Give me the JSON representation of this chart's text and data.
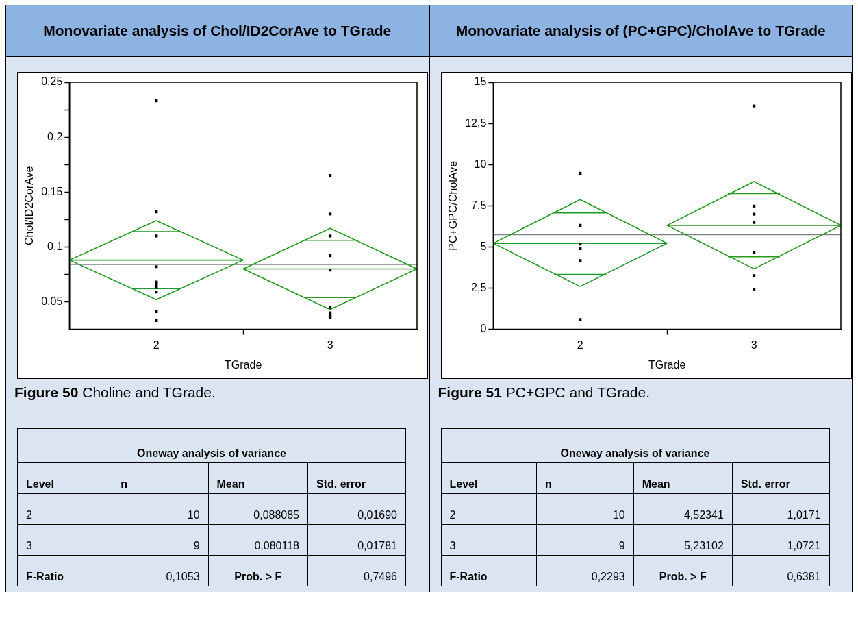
{
  "chart_data": [
    {
      "type": "scatter",
      "title": "Monovariate analysis of Chol/ID2CorAve to TGrade",
      "xlabel": "TGrade",
      "ylabel": "Chol/ID2CorAve",
      "marker": "square",
      "xlim": [
        1.5,
        3.5
      ],
      "xticks": [
        {
          "value": 2,
          "label": "2"
        },
        {
          "value": 2.5,
          "label": null
        },
        {
          "value": 3,
          "label": "3"
        }
      ],
      "ylim": [
        0.025,
        0.25
      ],
      "yticks": [
        {
          "value": 0.05,
          "label": "0,05"
        },
        {
          "value": 0.075,
          "label": null
        },
        {
          "value": 0.1,
          "label": "0,1"
        },
        {
          "value": 0.125,
          "label": null
        },
        {
          "value": 0.15,
          "label": "0,15"
        },
        {
          "value": 0.175,
          "label": null
        },
        {
          "value": 0.2,
          "label": "0,2"
        },
        {
          "value": 0.225,
          "label": null
        },
        {
          "value": 0.25,
          "label": "0,25"
        }
      ],
      "ref_lines": [
        {
          "axis": "y",
          "value": 0.084,
          "color": "#808080"
        }
      ],
      "series": [
        {
          "color": "#000000",
          "x": [
            2,
            2,
            2,
            2,
            2,
            2,
            2,
            2,
            2,
            2
          ],
          "values": [
            0.233,
            0.132,
            0.11,
            0.082,
            0.068,
            0.066,
            0.063,
            0.059,
            0.041,
            0.033
          ]
        },
        {
          "color": "#000000",
          "x": [
            3,
            3,
            3,
            3,
            3,
            3,
            3,
            3,
            3
          ],
          "values": [
            0.165,
            0.13,
            0.11,
            0.092,
            0.079,
            0.045,
            0.04,
            0.038,
            0.036
          ]
        },
        {
          "type": "line",
          "marker": "none",
          "color": "#1a9a1a",
          "x": [
            1.5,
            2,
            2.5
          ],
          "values": [
            0.088,
            0.124,
            0.088
          ]
        },
        {
          "type": "line",
          "marker": "none",
          "color": "#1a9a20",
          "x": [
            1.5,
            2,
            2.5
          ],
          "values": [
            0.088,
            0.052,
            0.088
          ]
        },
        {
          "type": "line",
          "marker": "none",
          "color": "#1a9a26",
          "x": [
            1.5,
            2.5
          ],
          "values": [
            0.088,
            0.088
          ]
        },
        {
          "type": "line",
          "marker": "none",
          "color": "#1a9a2c",
          "x": [
            1.86,
            2.14
          ],
          "values": [
            0.114,
            0.114
          ]
        },
        {
          "type": "line",
          "marker": "none",
          "color": "#1a9a32",
          "x": [
            1.86,
            2.14
          ],
          "values": [
            0.062,
            0.062
          ]
        },
        {
          "type": "line",
          "marker": "none",
          "color": "#1c9a1a",
          "x": [
            2.5,
            3,
            3.5
          ],
          "values": [
            0.08,
            0.117,
            0.08
          ]
        },
        {
          "type": "line",
          "marker": "none",
          "color": "#209a1a",
          "x": [
            2.5,
            3,
            3.5
          ],
          "values": [
            0.08,
            0.043,
            0.08
          ]
        },
        {
          "type": "line",
          "marker": "none",
          "color": "#249a1a",
          "x": [
            2.5,
            3.5
          ],
          "values": [
            0.08,
            0.08
          ]
        },
        {
          "type": "line",
          "marker": "none",
          "color": "#289a1a",
          "x": [
            2.85,
            3.14
          ],
          "values": [
            0.106,
            0.106
          ]
        },
        {
          "type": "line",
          "marker": "none",
          "color": "#2c9a1a",
          "x": [
            2.85,
            3.14
          ],
          "values": [
            0.054,
            0.054
          ]
        }
      ],
      "annotations": [
        "Figure 50 Choline and TGrade.",
        "Oneway analysis of variance",
        "Level",
        "n",
        "Mean",
        "Std. error",
        "2",
        "10",
        "0,088085",
        "0,01690",
        "3",
        "9",
        "0,080118",
        "0,01781",
        "F-Ratio",
        "0,1053",
        "Prob. > F",
        "0,7496"
      ]
    },
    {
      "type": "scatter",
      "title": "Monovariate analysis of (PC+GPC)/CholAve to TGrade",
      "xlabel": "TGrade",
      "ylabel": "PC+GPC/CholAve",
      "marker": "square",
      "xlim": [
        1.5,
        3.5
      ],
      "xticks": [
        {
          "value": 2,
          "label": "2"
        },
        {
          "value": 2.5,
          "label": null
        },
        {
          "value": 3,
          "label": "3"
        }
      ],
      "ylim": [
        0,
        15
      ],
      "yticks": [
        0,
        {
          "value": 2.5,
          "label": "2,5"
        },
        5,
        {
          "value": 7.5,
          "label": "7,5"
        },
        10,
        {
          "value": 12.5,
          "label": "12,5"
        },
        15
      ],
      "ref_lines": [
        {
          "axis": "y",
          "value": 5.74,
          "color": "#808080"
        }
      ],
      "series": [
        {
          "color": "#000000",
          "x": [
            2,
            2,
            2,
            2,
            2,
            2
          ],
          "values": [
            9.47,
            6.31,
            5.18,
            4.9,
            4.17,
            0.59
          ]
        },
        {
          "color": "#000000",
          "x": [
            3,
            3,
            3,
            3,
            3,
            3,
            3
          ],
          "values": [
            13.56,
            7.48,
            6.99,
            6.49,
            4.66,
            3.25,
            2.42
          ]
        },
        {
          "type": "line",
          "marker": "none",
          "color": "#1a9a1a",
          "x": [
            1.5,
            2,
            2.5
          ],
          "values": [
            5.22,
            7.88,
            5.22
          ]
        },
        {
          "type": "line",
          "marker": "none",
          "color": "#1a9a20",
          "x": [
            1.5,
            2,
            2.5
          ],
          "values": [
            5.22,
            2.6,
            5.22
          ]
        },
        {
          "type": "line",
          "marker": "none",
          "color": "#1a9a26",
          "x": [
            1.5,
            2.5
          ],
          "values": [
            5.22,
            5.22
          ]
        },
        {
          "type": "line",
          "marker": "none",
          "color": "#1a9a2c",
          "x": [
            1.85,
            2.15
          ],
          "values": [
            7.07,
            7.07
          ]
        },
        {
          "type": "line",
          "marker": "none",
          "color": "#1a9a32",
          "x": [
            1.85,
            2.15
          ],
          "values": [
            3.33,
            3.33
          ]
        },
        {
          "type": "line",
          "marker": "none",
          "color": "#1c9a1a",
          "x": [
            2.5,
            3,
            3.5
          ],
          "values": [
            6.31,
            8.97,
            6.31
          ]
        },
        {
          "type": "line",
          "marker": "none",
          "color": "#209a1a",
          "x": [
            2.5,
            3,
            3.5
          ],
          "values": [
            6.31,
            3.67,
            6.31
          ]
        },
        {
          "type": "line",
          "marker": "none",
          "color": "#249a1a",
          "x": [
            2.5,
            3.5
          ],
          "values": [
            6.31,
            6.31
          ]
        },
        {
          "type": "line",
          "marker": "none",
          "color": "#289a1a",
          "x": [
            2.85,
            3.15
          ],
          "values": [
            8.24,
            8.24
          ]
        },
        {
          "type": "line",
          "marker": "none",
          "color": "#2c9a1a",
          "x": [
            2.85,
            3.15
          ],
          "values": [
            4.41,
            4.41
          ]
        }
      ],
      "annotations": [
        "Figure 51 PC+GPC and TGrade.",
        "Oneway analysis of variance",
        "Level",
        "n",
        "Mean",
        "Std. error",
        "2",
        "10",
        "4,52341",
        "1,0171",
        "3",
        "9",
        "5,23102",
        "1,0721",
        "F-Ratio",
        "0,2293",
        "Prob. > F",
        "0,6381"
      ]
    }
  ]
}
